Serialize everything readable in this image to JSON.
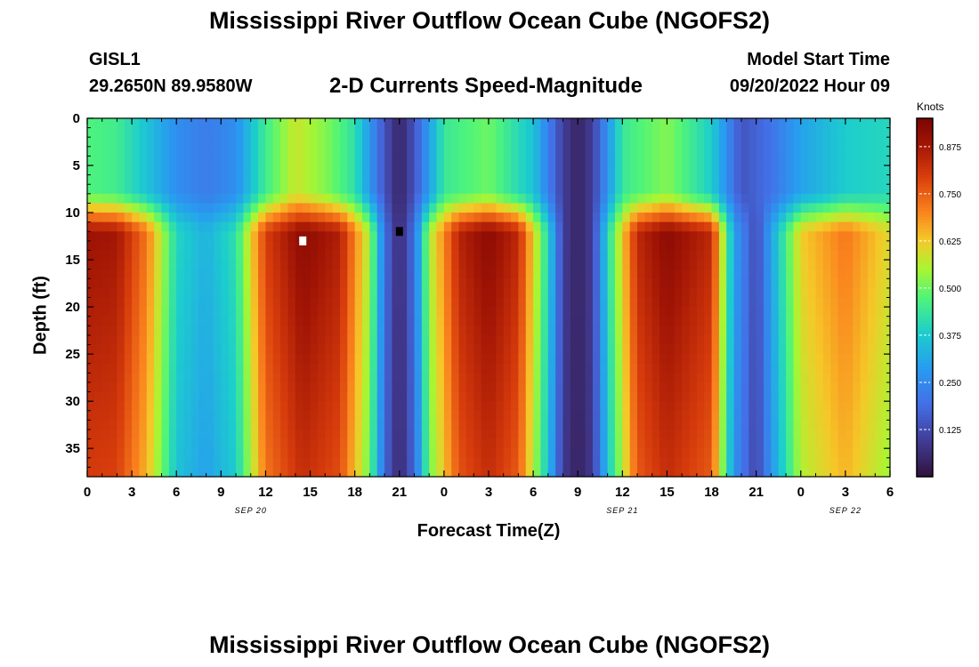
{
  "page": {
    "title": "Mississippi River Outflow Ocean Cube (NGOFS2)",
    "station_name": "GISL1",
    "station_coords": "29.2650N  89.9580W",
    "plot_title": "2-D Currents Speed-Magnitude",
    "model_label": "Model Start Time",
    "model_start": "09/20/2022 Hour 09",
    "second_title": "Mississippi River Outflow Ocean Cube (NGOFS2)"
  },
  "chart_data": {
    "type": "heatmap",
    "title": "2-D Currents Speed-Magnitude",
    "xlabel": "Forecast Time(Z)",
    "ylabel": "Depth (ft)",
    "x_range_hours": [
      0,
      54
    ],
    "x_tick_labels": [
      "0",
      "3",
      "6",
      "9",
      "12",
      "15",
      "18",
      "21",
      "0",
      "3",
      "6",
      "9",
      "12",
      "15",
      "18",
      "21",
      "0",
      "3",
      "6"
    ],
    "date_labels": [
      {
        "text": "SEP 20",
        "hour": 11
      },
      {
        "text": "SEP 21",
        "hour": 36
      },
      {
        "text": "SEP 22",
        "hour": 51
      }
    ],
    "ylim": [
      0,
      38
    ],
    "y_ticks": [
      0,
      5,
      10,
      15,
      20,
      25,
      30,
      35
    ],
    "colorbar": {
      "label": "Knots",
      "range": [
        0,
        0.95
      ],
      "ticks": [
        0.125,
        0.25,
        0.375,
        0.5,
        0.625,
        0.75,
        0.875
      ],
      "tick_labels": [
        "0.125",
        "0.250",
        "0.375",
        "0.500",
        "0.625",
        "0.750",
        "0.875"
      ]
    },
    "surface_speed_by_hour": [
      {
        "hour": 0,
        "knots": 0.47
      },
      {
        "hour": 2,
        "knots": 0.45
      },
      {
        "hour": 4,
        "knots": 0.36
      },
      {
        "hour": 6,
        "knots": 0.26
      },
      {
        "hour": 8,
        "knots": 0.22
      },
      {
        "hour": 10,
        "knots": 0.26
      },
      {
        "hour": 12,
        "knots": 0.45
      },
      {
        "hour": 14,
        "knots": 0.58
      },
      {
        "hour": 16,
        "knots": 0.52
      },
      {
        "hour": 18,
        "knots": 0.42
      },
      {
        "hour": 20,
        "knots": 0.14
      },
      {
        "hour": 21,
        "knots": 0.04
      },
      {
        "hour": 22,
        "knots": 0.14
      },
      {
        "hour": 24,
        "knots": 0.44
      },
      {
        "hour": 27,
        "knots": 0.5
      },
      {
        "hour": 30,
        "knots": 0.36
      },
      {
        "hour": 32,
        "knots": 0.1
      },
      {
        "hour": 33,
        "knots": 0.04
      },
      {
        "hour": 34,
        "knots": 0.1
      },
      {
        "hour": 36,
        "knots": 0.44
      },
      {
        "hour": 39,
        "knots": 0.52
      },
      {
        "hour": 42,
        "knots": 0.38
      },
      {
        "hour": 44,
        "knots": 0.14
      },
      {
        "hour": 46,
        "knots": 0.2
      },
      {
        "hour": 48,
        "knots": 0.3
      },
      {
        "hour": 51,
        "knots": 0.38
      },
      {
        "hour": 54,
        "knots": 0.4
      }
    ],
    "deep_speed_by_hour": [
      {
        "hour": 0,
        "knots": 0.89
      },
      {
        "hour": 2,
        "knots": 0.88
      },
      {
        "hour": 4,
        "knots": 0.72
      },
      {
        "hour": 6,
        "knots": 0.4
      },
      {
        "hour": 8,
        "knots": 0.33
      },
      {
        "hour": 10,
        "knots": 0.42
      },
      {
        "hour": 12,
        "knots": 0.8
      },
      {
        "hour": 14.5,
        "knots": 0.92
      },
      {
        "hour": 17,
        "knots": 0.86
      },
      {
        "hour": 19,
        "knots": 0.55
      },
      {
        "hour": 20,
        "knots": 0.2
      },
      {
        "hour": 21,
        "knots": 0.05
      },
      {
        "hour": 22,
        "knots": 0.2
      },
      {
        "hour": 23,
        "knots": 0.55
      },
      {
        "hour": 25,
        "knots": 0.85
      },
      {
        "hour": 27,
        "knots": 0.92
      },
      {
        "hour": 29,
        "knots": 0.84
      },
      {
        "hour": 31,
        "knots": 0.4
      },
      {
        "hour": 32,
        "knots": 0.1
      },
      {
        "hour": 33,
        "knots": 0.04
      },
      {
        "hour": 34,
        "knots": 0.1
      },
      {
        "hour": 35,
        "knots": 0.4
      },
      {
        "hour": 37,
        "knots": 0.84
      },
      {
        "hour": 39,
        "knots": 0.92
      },
      {
        "hour": 42,
        "knots": 0.84
      },
      {
        "hour": 43.5,
        "knots": 0.3
      },
      {
        "hour": 45,
        "knots": 0.12
      },
      {
        "hour": 46,
        "knots": 0.3
      },
      {
        "hour": 48,
        "knots": 0.62
      },
      {
        "hour": 51,
        "knots": 0.72
      },
      {
        "hour": 54,
        "knots": 0.6
      }
    ],
    "transition_depth_ft": [
      8,
      12
    ],
    "markers": [
      {
        "name": "white",
        "hour": 14.5,
        "depth_ft": 13,
        "color": "#ffffff"
      },
      {
        "name": "black",
        "hour": 21,
        "depth_ft": 12,
        "color": "#000000"
      }
    ]
  }
}
